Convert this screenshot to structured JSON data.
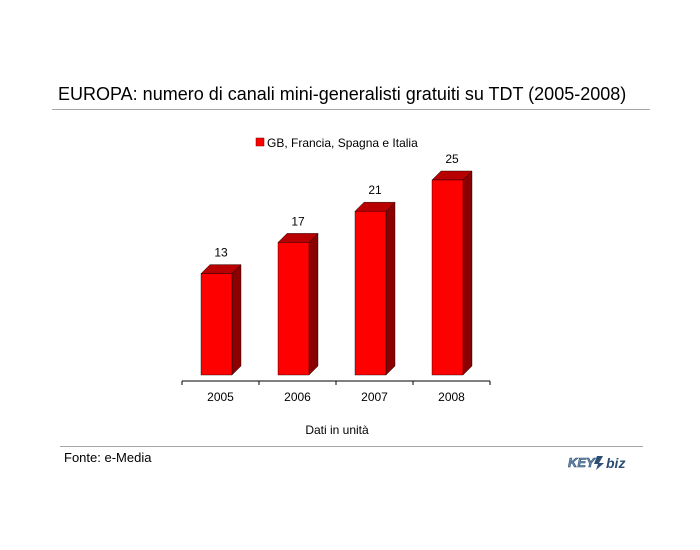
{
  "title": "EUROPA: numero di canali mini-generalisti gratuiti su TDT (2005-2008)",
  "source": "Fonte: e-Media",
  "logo_text": "KEY4biz",
  "chart_data": {
    "type": "bar",
    "categories": [
      "2005",
      "2006",
      "2007",
      "2008"
    ],
    "series": [
      {
        "name": "GB, Francia, Spagna e Italia",
        "values": [
          13,
          17,
          21,
          25
        ]
      }
    ],
    "xlabel": "Dati in unità",
    "ylabel": "",
    "ylim": [
      0,
      25
    ],
    "grid": false,
    "legend": "top",
    "bar_color": "#ff0000",
    "bar_side_color": "#8b0000",
    "bar_top_color": "#b80000"
  }
}
